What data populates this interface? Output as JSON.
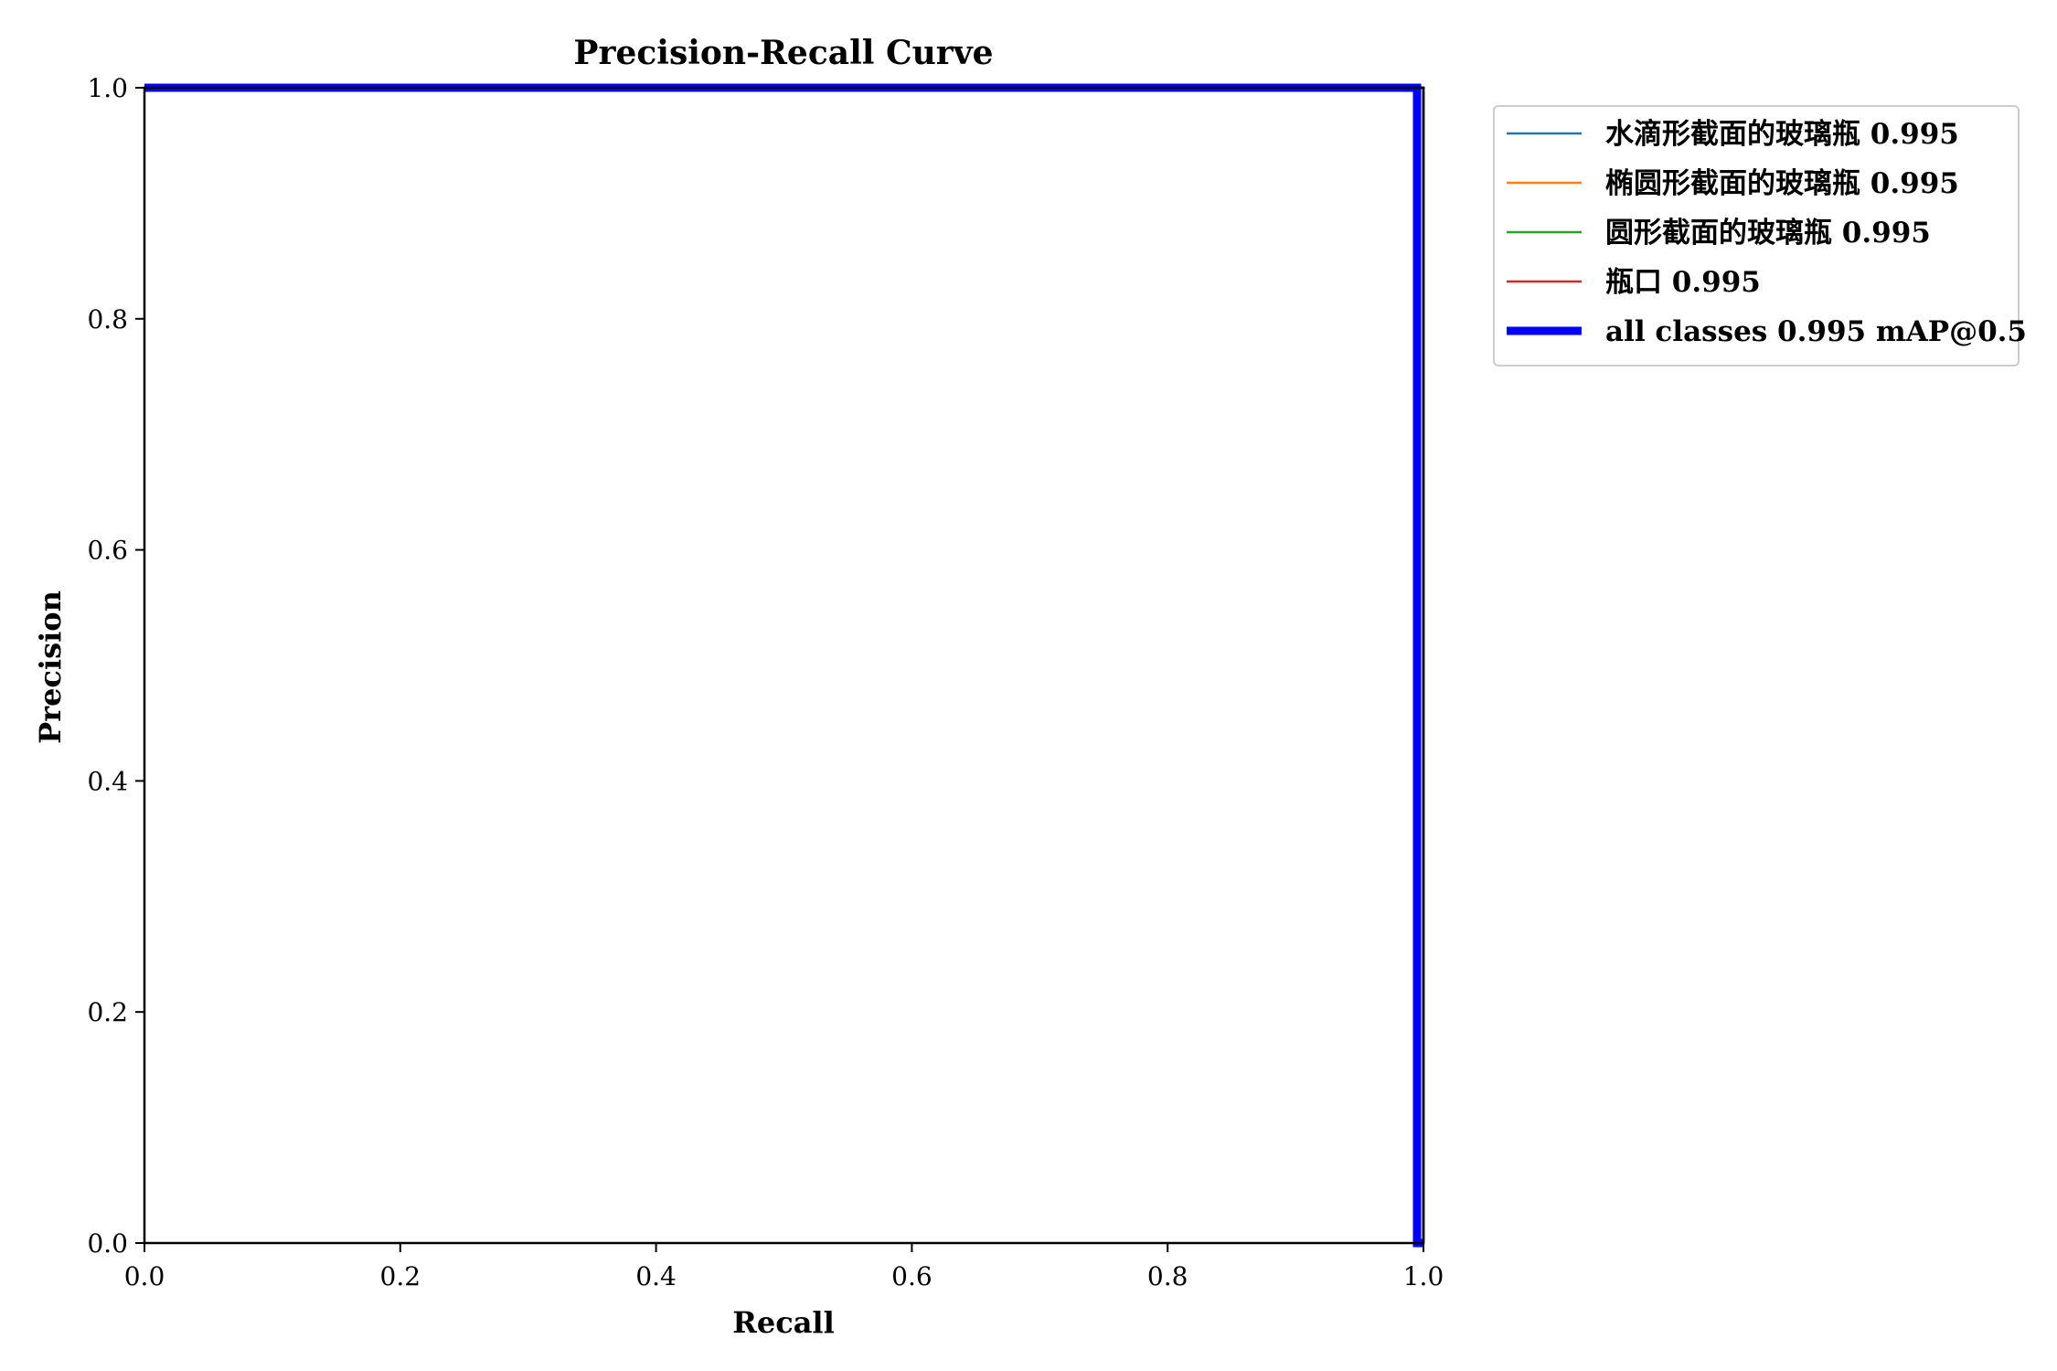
{
  "chart_data": {
    "type": "line",
    "title": "Precision-Recall Curve",
    "xlabel": "Recall",
    "ylabel": "Precision",
    "xlim": [
      0,
      1
    ],
    "ylim": [
      0,
      1
    ],
    "xticks": [
      "0.0",
      "0.2",
      "0.4",
      "0.6",
      "0.8",
      "1.0"
    ],
    "yticks": [
      "0.0",
      "0.2",
      "0.4",
      "0.6",
      "0.8",
      "1.0"
    ],
    "grid": false,
    "legend_position": "outside-top-right",
    "series": [
      {
        "name": "水滴形截面的玻璃瓶 0.995",
        "color": "#1f77b4",
        "width": "thin",
        "x": [
          0,
          0.995,
          1.0,
          1.0
        ],
        "y": [
          1.0,
          1.0,
          1.0,
          0.0
        ]
      },
      {
        "name": "椭圆形截面的玻璃瓶 0.995",
        "color": "#ff7f0e",
        "width": "thin",
        "x": [
          0,
          0.995,
          1.0,
          1.0
        ],
        "y": [
          1.0,
          1.0,
          1.0,
          0.0
        ]
      },
      {
        "name": "圆形截面的玻璃瓶 0.995",
        "color": "#2ca02c",
        "width": "thin",
        "x": [
          0,
          0.995,
          1.0,
          1.0
        ],
        "y": [
          1.0,
          1.0,
          1.0,
          0.0
        ]
      },
      {
        "name": "瓶口 0.995",
        "color": "#d62728",
        "width": "thin",
        "x": [
          0,
          0.995,
          1.0,
          1.0
        ],
        "y": [
          1.0,
          1.0,
          1.0,
          0.0
        ]
      },
      {
        "name": "all classes 0.995 mAP@0.5",
        "color": "#0000ff",
        "width": "thick",
        "x": [
          0,
          0.995,
          0.995,
          1.0
        ],
        "y": [
          1.0,
          1.0,
          0.0,
          0.0
        ]
      }
    ]
  }
}
